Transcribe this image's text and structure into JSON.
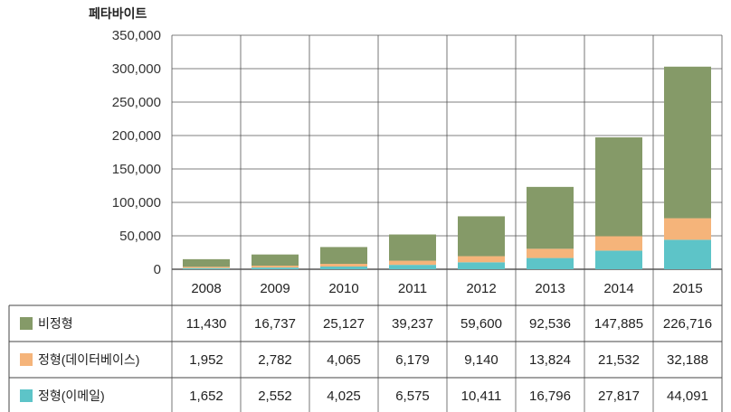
{
  "chart_data": {
    "type": "bar",
    "stacked": true,
    "ylabel": "페타바이트",
    "ylim": [
      0,
      350000
    ],
    "yticks": [
      "350,000",
      "300,000",
      "250,000",
      "200,000",
      "150,000",
      "100,000",
      "50,000",
      "0"
    ],
    "ytick_values": [
      350000,
      300000,
      250000,
      200000,
      150000,
      100000,
      50000,
      0
    ],
    "categories": [
      "2008",
      "2009",
      "2010",
      "2011",
      "2012",
      "2013",
      "2014",
      "2015"
    ],
    "series": [
      {
        "name": "비정형",
        "color": "#859a68",
        "values": [
          11430,
          16737,
          25127,
          39237,
          59600,
          92536,
          147885,
          226716
        ],
        "labels": [
          "11,430",
          "16,737",
          "25,127",
          "39,237",
          "59,600",
          "92,536",
          "147,885",
          "226,716"
        ]
      },
      {
        "name": "정형(데이터베이스)",
        "color": "#f5b47a",
        "values": [
          1952,
          2782,
          4065,
          6179,
          9140,
          13824,
          21532,
          32188
        ],
        "labels": [
          "1,952",
          "2,782",
          "4,065",
          "6,179",
          "9,140",
          "13,824",
          "21,532",
          "32,188"
        ]
      },
      {
        "name": "정형(이메일)",
        "color": "#5dc4c8",
        "values": [
          1652,
          2552,
          4025,
          6575,
          10411,
          16796,
          27817,
          44091
        ],
        "labels": [
          "1,652",
          "2,552",
          "4,025",
          "6,575",
          "10,411",
          "16,796",
          "27,817",
          "44,091"
        ]
      }
    ],
    "grid": true,
    "legend": "table-below"
  }
}
